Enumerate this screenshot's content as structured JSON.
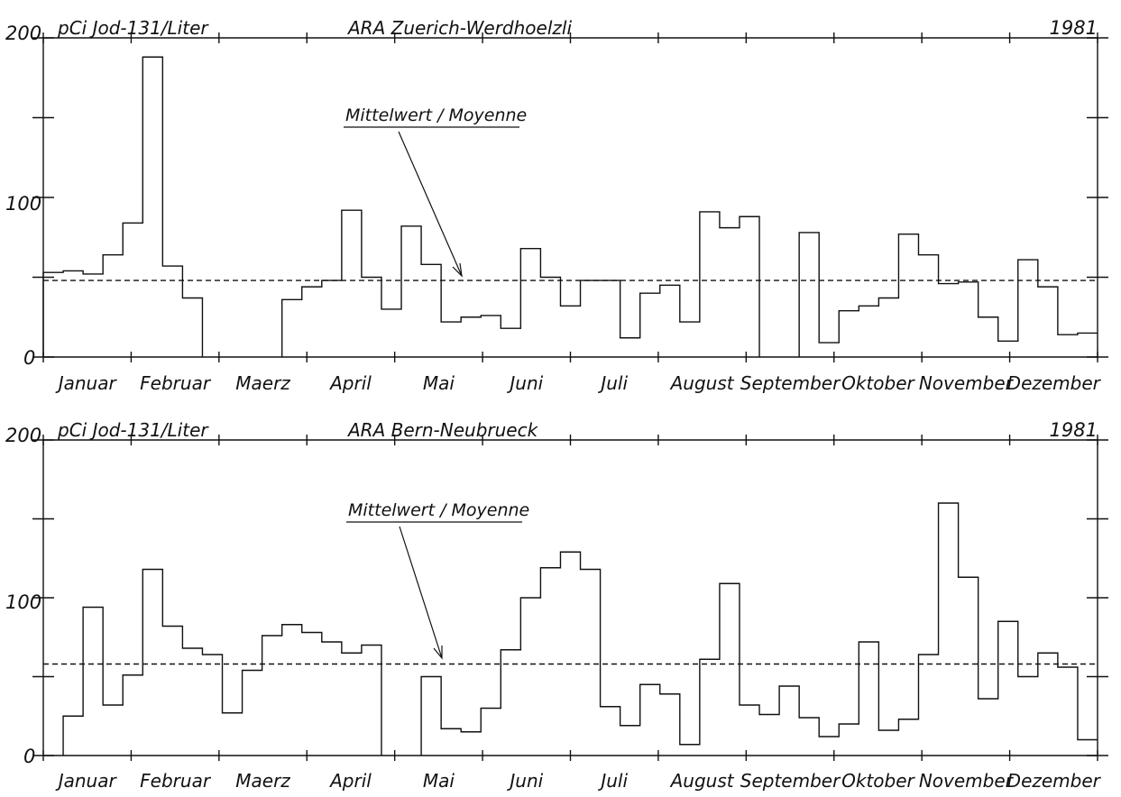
{
  "chart_data": [
    {
      "type": "line",
      "step": true,
      "title": "ARA Zuerich-Werdhoelzli",
      "unit_label": "pCi Jod-131/Liter",
      "year": "1981",
      "annotation": "Mittelwert / Moyenne",
      "ylim": [
        0,
        200
      ],
      "yticks": [
        "0",
        "100",
        "200"
      ],
      "months": [
        "Januar",
        "Februar",
        "Maerz",
        "April",
        "Mai",
        "Juni",
        "Juli",
        "August",
        "September",
        "Oktober",
        "November",
        "Dezember"
      ],
      "mean": 48,
      "week_range": [
        0,
        53
      ],
      "values": [
        53,
        54,
        52,
        64,
        84,
        188,
        57,
        37,
        null,
        null,
        null,
        null,
        36,
        44,
        48,
        92,
        50,
        30,
        82,
        58,
        22,
        25,
        26,
        18,
        68,
        50,
        32,
        48,
        48,
        12,
        40,
        45,
        22,
        91,
        81,
        88,
        null,
        null,
        78,
        9,
        29,
        32,
        37,
        77,
        64,
        46,
        47,
        25,
        10,
        61,
        44,
        14,
        15
      ]
    },
    {
      "type": "line",
      "step": true,
      "title": "ARA Bern-Neubrueck",
      "unit_label": "pCi Jod-131/Liter",
      "year": "1981",
      "annotation": "Mittelwert / Moyenne",
      "ylim": [
        0,
        200
      ],
      "yticks": [
        "0",
        "100",
        "200"
      ],
      "months": [
        "Januar",
        "Februar",
        "Maerz",
        "April",
        "Mai",
        "Juni",
        "Juli",
        "August",
        "September",
        "Oktober",
        "November",
        "Dezember"
      ],
      "mean": 58,
      "week_range": [
        0,
        53
      ],
      "values": [
        null,
        25,
        94,
        32,
        51,
        118,
        82,
        68,
        64,
        27,
        54,
        76,
        83,
        78,
        72,
        65,
        70,
        null,
        null,
        50,
        17,
        15,
        30,
        67,
        100,
        119,
        129,
        118,
        31,
        19,
        45,
        39,
        7,
        61,
        109,
        32,
        26,
        44,
        24,
        12,
        20,
        72,
        16,
        23,
        64,
        160,
        113,
        36,
        85,
        50,
        65,
        56,
        10
      ]
    }
  ]
}
